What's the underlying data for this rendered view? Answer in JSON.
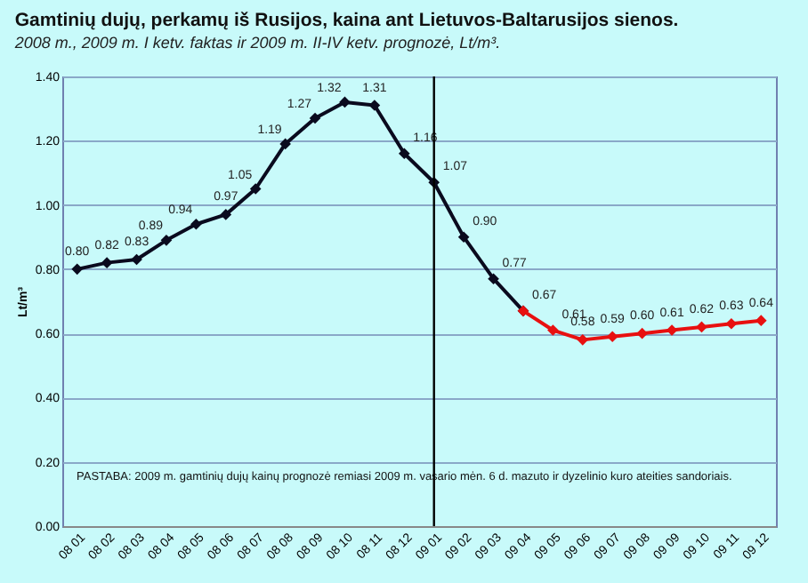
{
  "chart_data": {
    "type": "line",
    "title": "Gamtinių dujų, perkamų iš Rusijos, kaina ant Lietuvos-Baltarusijos sienos.",
    "subtitle": "2008 m., 2009 m. I ketv. faktas ir 2009 m. II-IV ketv. prognozė, Lt/m³.",
    "ylabel": "Lt/m³",
    "categories": [
      "08 01",
      "08 02",
      "08 03",
      "08 04",
      "08 05",
      "08 06",
      "08 07",
      "08 08",
      "08 09",
      "08 10",
      "08 11",
      "08 12",
      "09 01",
      "09 02",
      "09 03",
      "09 04",
      "09 05",
      "09 06",
      "09 07",
      "09 08",
      "09 09",
      "09 10",
      "09 11",
      "09 12"
    ],
    "series": [
      {
        "color": "#0a0a1e",
        "values": [
          0.8,
          0.82,
          0.83,
          0.89,
          0.94,
          0.97,
          1.05,
          1.19,
          1.27,
          1.32,
          1.31,
          1.16,
          1.07,
          0.9,
          0.77,
          0.67,
          null,
          null,
          null,
          null,
          null,
          null,
          null,
          null
        ],
        "value_labels": [
          "0.80",
          "0.82",
          "0.83",
          "0.89",
          "0.94",
          "0.97",
          "1.05",
          "1.19",
          "1.27",
          "1.32",
          "1.31",
          "1.16",
          "1.07",
          "0.90",
          "0.77",
          "0.67",
          null,
          null,
          null,
          null,
          null,
          null,
          null,
          null
        ]
      },
      {
        "color": "#e81010",
        "values": [
          null,
          null,
          null,
          null,
          null,
          null,
          null,
          null,
          null,
          null,
          null,
          null,
          null,
          null,
          null,
          0.67,
          0.61,
          0.58,
          0.59,
          0.6,
          0.61,
          0.62,
          0.63,
          0.64
        ],
        "value_labels": [
          null,
          null,
          null,
          null,
          null,
          null,
          null,
          null,
          null,
          null,
          null,
          null,
          null,
          null,
          null,
          null,
          "0.61",
          "0.58",
          "0.59",
          "0.60",
          "0.61",
          "0.62",
          "0.63",
          "0.64"
        ]
      }
    ],
    "ylim": [
      0,
      1.4
    ],
    "yticks": [
      {
        "value": 0,
        "label": "0.00"
      },
      {
        "value": 0.2,
        "label": "0.20"
      },
      {
        "value": 0.4,
        "label": "0.40"
      },
      {
        "value": 0.6,
        "label": "0.60"
      },
      {
        "value": 0.8,
        "label": "0.80"
      },
      {
        "value": 1.0,
        "label": "1.00"
      },
      {
        "value": 1.2,
        "label": "1.20"
      },
      {
        "value": 1.4,
        "label": "1.40"
      }
    ],
    "grid": "y",
    "marker": "diamond",
    "ref_lines": [
      {
        "axis": "x",
        "value": "09 01",
        "color": "#000000"
      }
    ],
    "annotations": [
      "PASTABA: 2009 m. gamtinių dujų kainų prognozė remiasi 2009 m. vasario mėn. 6 d. mazuto ir dyzelinio kuro ateities sandoriais."
    ]
  }
}
